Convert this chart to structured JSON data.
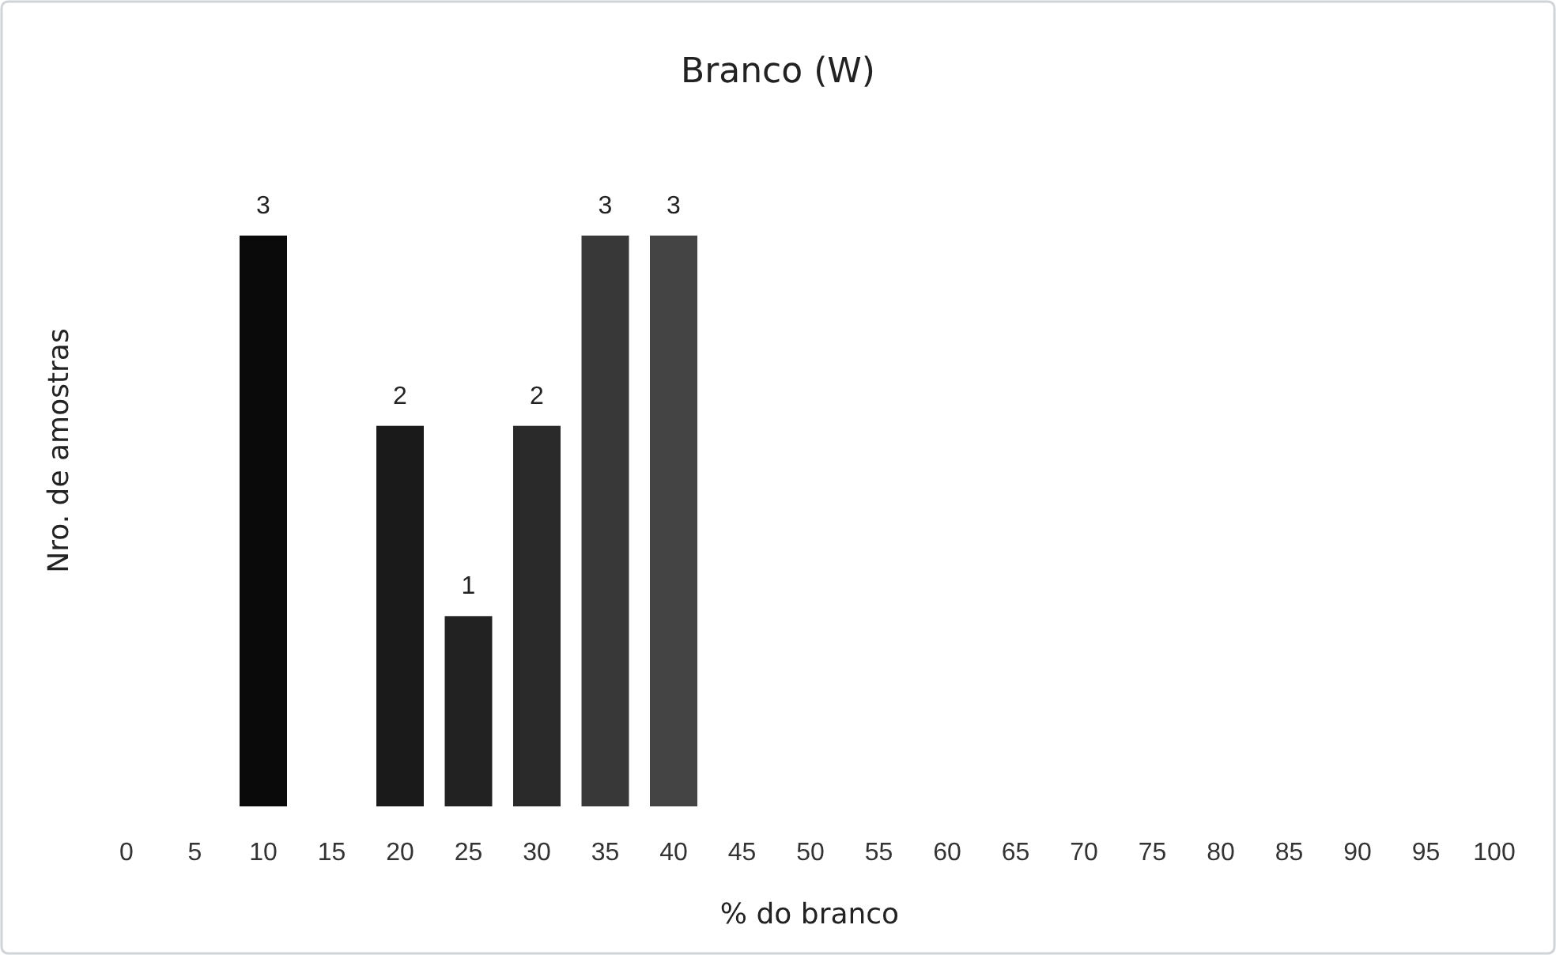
{
  "chart_data": {
    "type": "bar",
    "title": "Branco (W)",
    "xlabel": "% do branco",
    "ylabel": "Nro. de amostras",
    "categories": [
      "0",
      "5",
      "10",
      "15",
      "20",
      "25",
      "30",
      "35",
      "40",
      "45",
      "50",
      "55",
      "60",
      "65",
      "70",
      "75",
      "80",
      "85",
      "90",
      "95",
      "100"
    ],
    "values": [
      null,
      null,
      3,
      null,
      2,
      1,
      2,
      3,
      3,
      null,
      null,
      null,
      null,
      null,
      null,
      null,
      null,
      null,
      null,
      null,
      null
    ],
    "colors": [
      null,
      null,
      "#0a0a0a",
      null,
      "#1a1a1a",
      "#222222",
      "#2a2a2a",
      "#383838",
      "#444444",
      null,
      null,
      null,
      null,
      null,
      null,
      null,
      null,
      null,
      null,
      null,
      null
    ],
    "data_labels": true
  }
}
